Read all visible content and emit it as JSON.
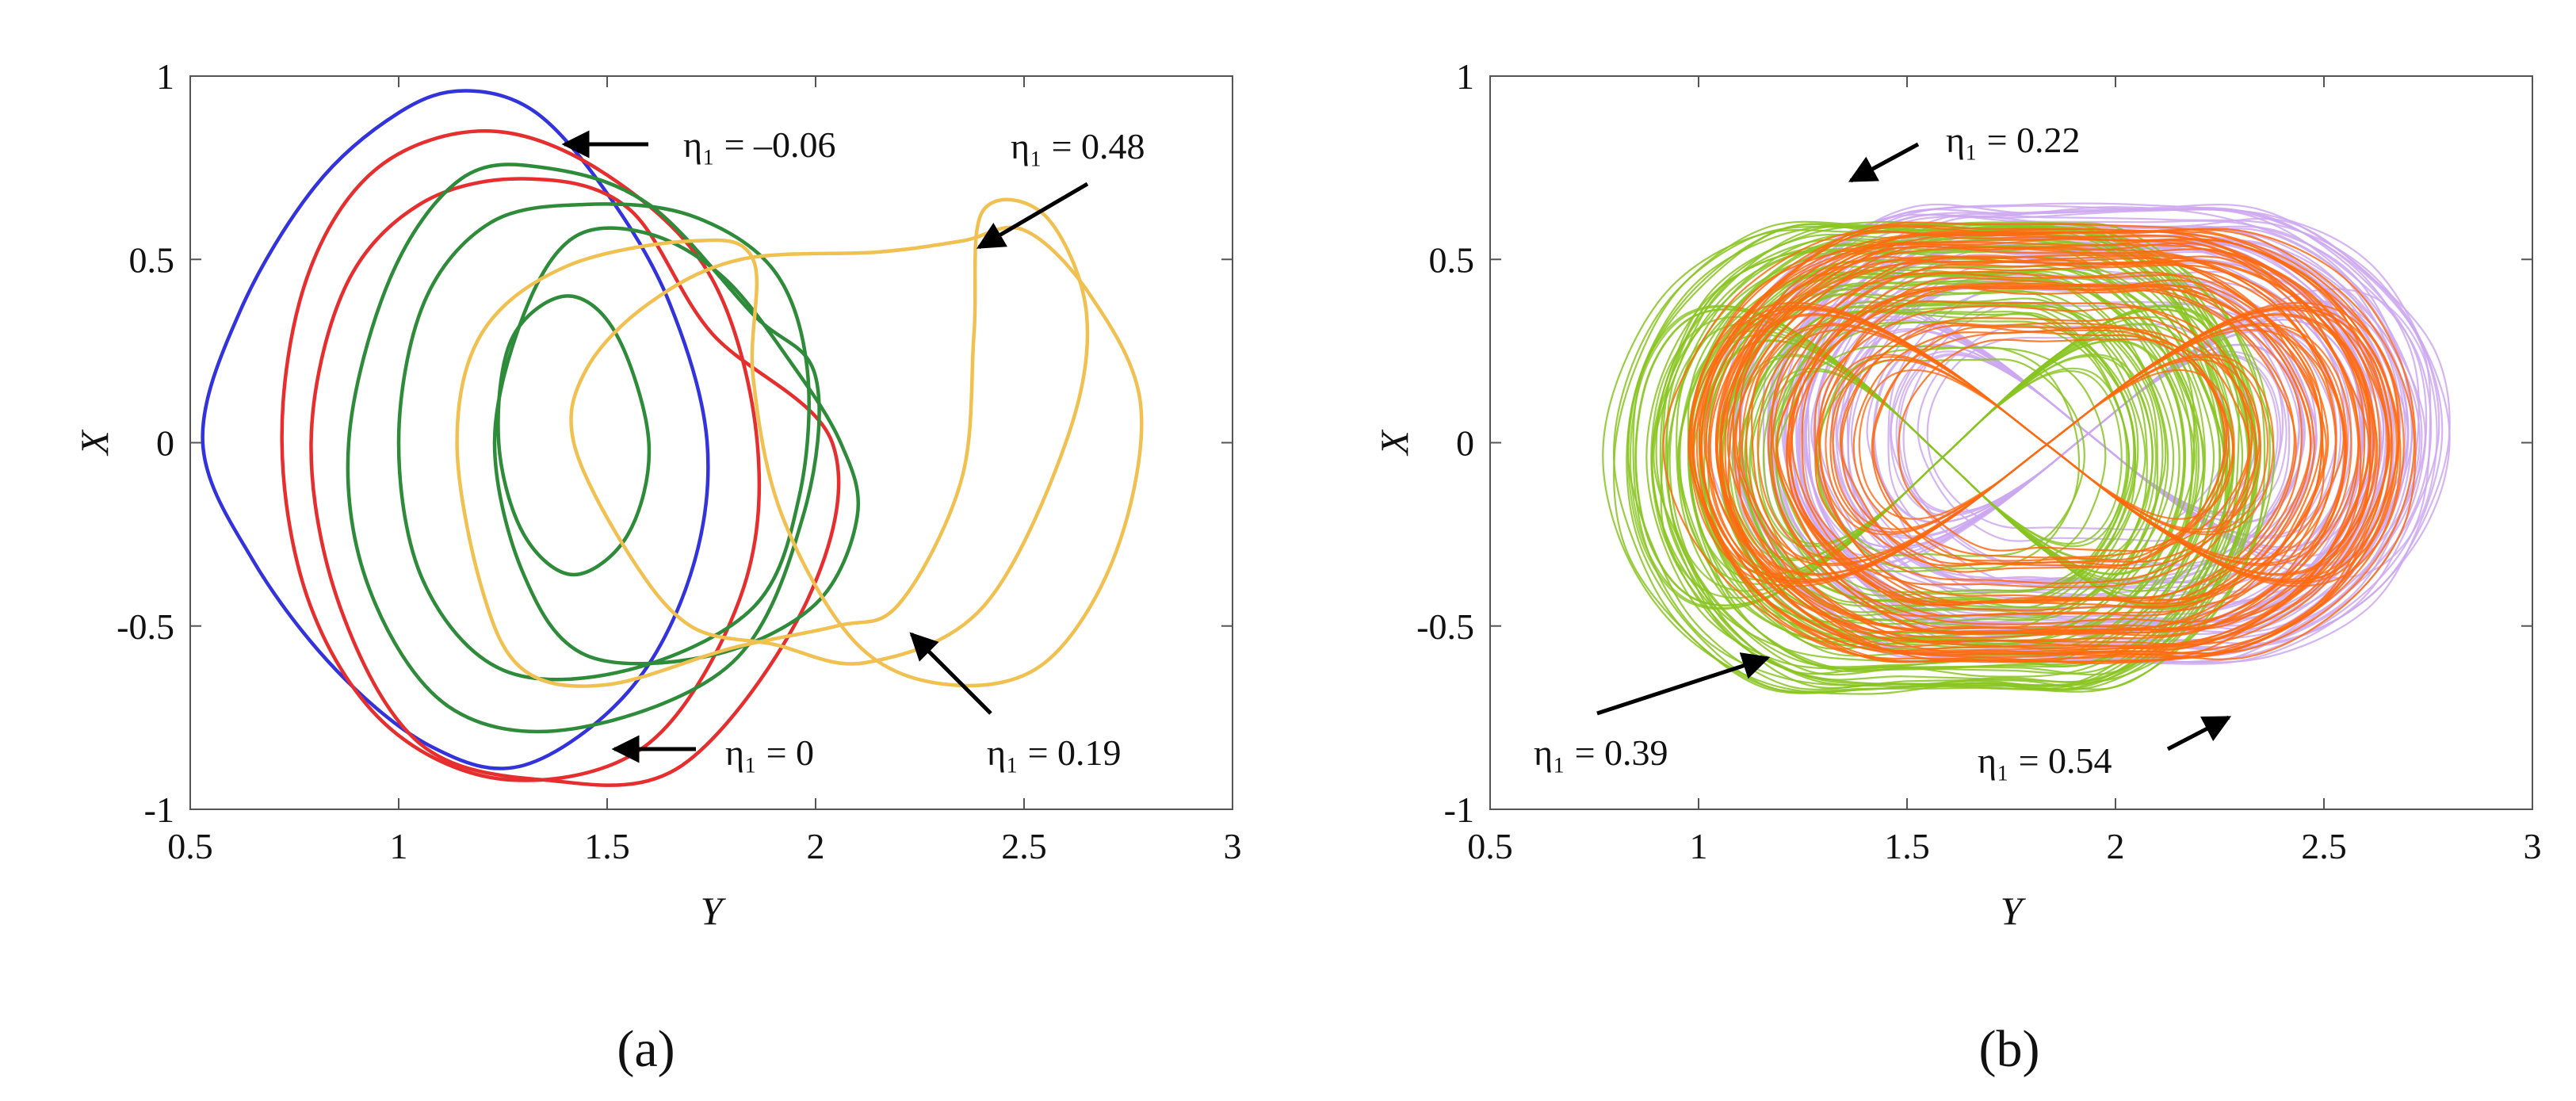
{
  "chart_data": [
    {
      "type": "line",
      "panel_label": "(a)",
      "panel_letter": "a",
      "xlabel": "Y",
      "ylabel": "X",
      "xlim": [
        0.5,
        3
      ],
      "ylim": [
        -1,
        1
      ],
      "xticks": [
        "0.5",
        "1",
        "1.5",
        "2",
        "2.5",
        "3"
      ],
      "yticks": [
        "-1",
        "-0.5",
        "0",
        "0.5",
        "1"
      ],
      "grid": false,
      "series": [
        {
          "color": "#3333dd",
          "kind": "closed-orbit",
          "points": [
            [
              0.53,
              0
            ],
            [
              0.62,
              0.36
            ],
            [
              0.8,
              0.7
            ],
            [
              1.0,
              0.9
            ],
            [
              1.16,
              0.96
            ],
            [
              1.33,
              0.9
            ],
            [
              1.5,
              0.68
            ],
            [
              1.65,
              0.38
            ],
            [
              1.74,
              0
            ],
            [
              1.7,
              -0.36
            ],
            [
              1.55,
              -0.68
            ],
            [
              1.3,
              -0.88
            ],
            [
              1.08,
              -0.83
            ],
            [
              0.85,
              -0.62
            ],
            [
              0.65,
              -0.32
            ]
          ]
        },
        {
          "color": "#e62e2e",
          "kind": "closed-orbit",
          "points": [
            [
              0.72,
              0
            ],
            [
              0.78,
              0.45
            ],
            [
              0.95,
              0.75
            ],
            [
              1.22,
              0.85
            ],
            [
              1.5,
              0.73
            ],
            [
              1.75,
              0.45
            ],
            [
              1.86,
              0
            ],
            [
              1.82,
              -0.42
            ],
            [
              1.6,
              -0.82
            ],
            [
              1.27,
              -0.92
            ],
            [
              0.98,
              -0.78
            ],
            [
              0.79,
              -0.45
            ]
          ]
        },
        {
          "color": "#e62e2e",
          "kind": "closed-orbit",
          "points": [
            [
              0.79,
              0
            ],
            [
              0.87,
              0.42
            ],
            [
              1.05,
              0.65
            ],
            [
              1.3,
              0.72
            ],
            [
              1.55,
              0.64
            ],
            [
              1.75,
              0.3
            ],
            [
              2.04,
              0
            ],
            [
              1.98,
              -0.43
            ],
            [
              1.68,
              -0.88
            ],
            [
              1.35,
              -0.92
            ],
            [
              1.05,
              -0.82
            ],
            [
              0.86,
              -0.45
            ]
          ]
        },
        {
          "color": "#2e8b3a",
          "kind": "closed-orbit",
          "points": [
            [
              0.88,
              0
            ],
            [
              0.98,
              0.45
            ],
            [
              1.15,
              0.72
            ],
            [
              1.35,
              0.75
            ],
            [
              1.6,
              0.65
            ],
            [
              1.85,
              0.35
            ],
            [
              2.0,
              0.18
            ],
            [
              1.97,
              -0.2
            ],
            [
              1.8,
              -0.6
            ],
            [
              1.42,
              -0.78
            ],
            [
              1.12,
              -0.72
            ],
            [
              0.93,
              -0.4
            ]
          ]
        },
        {
          "color": "#2e8b3a",
          "kind": "closed-orbit",
          "points": [
            [
              1.0,
              0
            ],
            [
              1.06,
              0.38
            ],
            [
              1.22,
              0.6
            ],
            [
              1.45,
              0.65
            ],
            [
              1.7,
              0.62
            ],
            [
              1.9,
              0.47
            ],
            [
              1.98,
              0.2
            ],
            [
              1.96,
              -0.15
            ],
            [
              1.85,
              -0.45
            ],
            [
              1.55,
              -0.62
            ],
            [
              1.25,
              -0.62
            ],
            [
              1.06,
              -0.38
            ]
          ]
        },
        {
          "color": "#2e8b3a",
          "kind": "closed-orbit",
          "points": [
            [
              1.23,
              0
            ],
            [
              1.3,
              0.35
            ],
            [
              1.42,
              0.56
            ],
            [
              1.6,
              0.57
            ],
            [
              1.78,
              0.45
            ],
            [
              1.94,
              0.22
            ],
            [
              2.06,
              0
            ],
            [
              2.1,
              -0.2
            ],
            [
              2.0,
              -0.44
            ],
            [
              1.75,
              -0.58
            ],
            [
              1.45,
              -0.58
            ],
            [
              1.3,
              -0.36
            ]
          ]
        },
        {
          "color": "#2e8b3a",
          "kind": "closed-orbit",
          "points": [
            [
              1.24,
              0
            ],
            [
              1.27,
              0.28
            ],
            [
              1.4,
              0.4
            ],
            [
              1.52,
              0.3
            ],
            [
              1.6,
              0
            ],
            [
              1.55,
              -0.25
            ],
            [
              1.42,
              -0.36
            ],
            [
              1.3,
              -0.25
            ]
          ]
        },
        {
          "color": "#f0c050",
          "kind": "closed-orbit",
          "points": [
            [
              1.42,
              0
            ],
            [
              1.45,
              0.2
            ],
            [
              1.6,
              0.38
            ],
            [
              1.82,
              0.5
            ],
            [
              2.15,
              0.52
            ],
            [
              2.35,
              0.55
            ],
            [
              2.5,
              0.58
            ],
            [
              2.66,
              0.4
            ],
            [
              2.78,
              0.1
            ],
            [
              2.72,
              -0.3
            ],
            [
              2.55,
              -0.6
            ],
            [
              2.32,
              -0.66
            ],
            [
              2.1,
              -0.55
            ],
            [
              1.92,
              -0.2
            ],
            [
              1.85,
              0.18
            ],
            [
              1.85,
              0.5
            ],
            [
              1.7,
              0.55
            ],
            [
              1.4,
              0.48
            ],
            [
              1.2,
              0.3
            ],
            [
              1.14,
              0
            ],
            [
              1.2,
              -0.4
            ],
            [
              1.3,
              -0.62
            ],
            [
              1.5,
              -0.66
            ],
            [
              1.8,
              -0.56
            ],
            [
              2.05,
              -0.5
            ],
            [
              2.2,
              -0.44
            ],
            [
              2.35,
              -0.1
            ],
            [
              2.38,
              0.3
            ],
            [
              2.4,
              0.63
            ],
            [
              2.55,
              0.62
            ],
            [
              2.65,
              0.35
            ],
            [
              2.6,
              0
            ],
            [
              2.4,
              -0.45
            ],
            [
              2.12,
              -0.6
            ],
            [
              1.9,
              -0.55
            ],
            [
              1.7,
              -0.5
            ],
            [
              1.55,
              -0.3
            ]
          ]
        }
      ],
      "annotations": [
        {
          "text": "η₁ = –0.06",
          "target": [
            1.4,
            0.82
          ]
        },
        {
          "text": "η₁ = 0.48",
          "target": [
            2.42,
            0.53
          ]
        },
        {
          "text": "η₁ = 0",
          "target": [
            1.53,
            -0.87
          ]
        },
        {
          "text": "η₁ = 0.19",
          "target": [
            2.26,
            -0.51
          ]
        }
      ]
    },
    {
      "type": "line",
      "panel_label": "(b)",
      "panel_letter": "b",
      "xlabel": "Y",
      "ylabel": "X",
      "xlim": [
        0.5,
        3
      ],
      "ylim": [
        -1,
        1
      ],
      "xticks": [
        "0.5",
        "1",
        "1.5",
        "2",
        "2.5",
        "3"
      ],
      "yticks": [
        "-1",
        "-0.5",
        "0",
        "0.5",
        "1"
      ],
      "grid": false,
      "series": [
        {
          "color": "#cca8f0",
          "kind": "chaotic-band",
          "y_range": [
            1.05,
            2.82
          ],
          "x_range": [
            -0.75,
            0.8
          ]
        },
        {
          "color": "#88c420",
          "kind": "chaotic-band",
          "y_range": [
            0.82,
            2.35
          ],
          "x_range": [
            -0.82,
            0.74
          ]
        },
        {
          "color": "#ff6a10",
          "kind": "chaotic-band",
          "y_range": [
            0.97,
            2.7
          ],
          "x_range": [
            -0.73,
            0.72
          ]
        }
      ],
      "annotations": [
        {
          "text": "η₁ = 0.22",
          "target": [
            1.37,
            0.72
          ]
        },
        {
          "text": "η₁ = 0.39",
          "target": [
            1.18,
            -0.58
          ]
        },
        {
          "text": "η₁ = 0.54",
          "target": [
            2.3,
            -0.74
          ]
        }
      ]
    }
  ]
}
